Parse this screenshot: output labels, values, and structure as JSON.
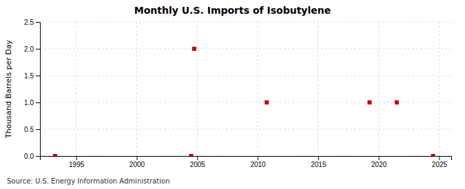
{
  "chart_data": {
    "type": "scatter",
    "title": "Monthly U.S. Imports of Isobutylene",
    "ylabel": "Thousand Barrels per Day",
    "annotations": [
      "Source: U.S. Energy Information Administration"
    ],
    "x": [
      1993.25,
      2004.5,
      2004.75,
      2010.75,
      2019.25,
      2021.5,
      2024.5
    ],
    "values": [
      0.0,
      0.0,
      2.0,
      1.0,
      1.0,
      1.0,
      0.0
    ],
    "color": "#cc0000",
    "marker": "square",
    "xlim": [
      1992,
      2026
    ],
    "ylim": [
      0.0,
      2.5
    ],
    "xticks": [
      1995,
      2000,
      2005,
      2010,
      2015,
      2020,
      2025
    ],
    "yticks": [
      {
        "value": 0.0,
        "label": "0.0"
      },
      0.5,
      {
        "value": 1.0,
        "label": "1.0"
      },
      1.5,
      {
        "value": 2.0,
        "label": "2.0"
      },
      2.5
    ],
    "grid": true
  }
}
